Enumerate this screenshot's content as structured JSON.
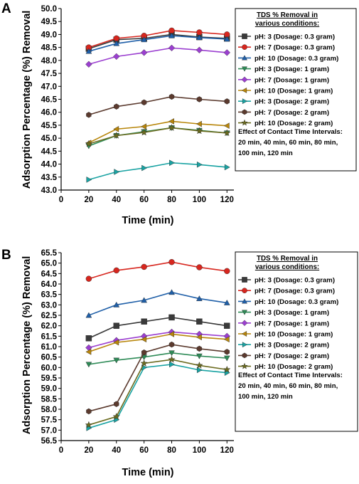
{
  "chart_data": [
    {
      "type": "line",
      "panel": "A",
      "xlabel": "Time (min)",
      "ylabel": "Adsorption Percentage (%) Removal",
      "xlim": [
        0,
        125
      ],
      "ylim": [
        43.0,
        50.0
      ],
      "xticks": [
        0,
        20,
        40,
        60,
        80,
        100,
        120
      ],
      "yticks": [
        "43.0",
        "43.5",
        "44.0",
        "44.5",
        "45.0",
        "45.5",
        "46.0",
        "46.5",
        "47.0",
        "47.5",
        "48.0",
        "48.5",
        "49.0",
        "49.5",
        "50.0"
      ],
      "x": [
        20,
        40,
        60,
        80,
        100,
        120
      ],
      "legend_title_lines": [
        "TDS % Removal in",
        "various conditions:"
      ],
      "legend_note_lines": [
        "Effect of Contact Time Intervals:",
        "20 min, 40 min, 60 min, 80 min,",
        "100 min, 120 min"
      ],
      "series": [
        {
          "name": "pH: 3 (Dosage: 0.3 gram)",
          "color": "#3a3a3a",
          "marker": "square",
          "values": [
            48.45,
            48.8,
            48.85,
            49.0,
            48.9,
            48.85
          ]
        },
        {
          "name": "pH: 7 (Dosage: 0.3 gram)",
          "color": "#d7261e",
          "marker": "circle",
          "values": [
            48.5,
            48.85,
            48.95,
            49.15,
            49.08,
            49.0
          ]
        },
        {
          "name": "pH: 10 (Dosage: 0.3 gram)",
          "color": "#1f5fa8",
          "marker": "triangle-up",
          "values": [
            48.35,
            48.65,
            48.8,
            48.95,
            48.88,
            48.82
          ]
        },
        {
          "name": "pH: 3 (Dosage: 1 gram)",
          "color": "#2e8b57",
          "marker": "triangle-down",
          "values": [
            44.7,
            45.1,
            45.25,
            45.4,
            45.3,
            45.2
          ]
        },
        {
          "name": "pH: 7 (Dosage: 1 gram)",
          "color": "#9b3fd0",
          "marker": "diamond",
          "values": [
            47.85,
            48.15,
            48.3,
            48.48,
            48.4,
            48.3
          ]
        },
        {
          "name": "pH: 10 (Dosage: 1 gram)",
          "color": "#b8860b",
          "marker": "triangle-left",
          "values": [
            44.82,
            45.35,
            45.45,
            45.65,
            45.55,
            45.48
          ]
        },
        {
          "name": "pH: 3 (Dosage: 2 gram)",
          "color": "#1aa3a3",
          "marker": "triangle-right",
          "values": [
            43.4,
            43.7,
            43.85,
            44.05,
            43.98,
            43.88
          ]
        },
        {
          "name": "pH: 7 (Dosage: 2 gram)",
          "color": "#5b3a2e",
          "marker": "hexagon",
          "values": [
            45.9,
            46.22,
            46.38,
            46.6,
            46.5,
            46.42
          ]
        },
        {
          "name": "pH: 10 (Dosage: 2 gram)",
          "color": "#6b6b1f",
          "marker": "star",
          "values": [
            44.78,
            45.1,
            45.22,
            45.4,
            45.28,
            45.2
          ]
        }
      ]
    },
    {
      "type": "line",
      "panel": "B",
      "xlabel": "Time (min)",
      "ylabel": "Adsorption Percentage (%) Removal",
      "xlim": [
        0,
        125
      ],
      "ylim": [
        56.5,
        65.5
      ],
      "xticks": [
        0,
        20,
        40,
        60,
        80,
        100,
        120
      ],
      "yticks": [
        "56.5",
        "57.0",
        "57.5",
        "58.0",
        "58.5",
        "59.0",
        "59.5",
        "60.0",
        "60.5",
        "61.0",
        "61.5",
        "62.0",
        "62.5",
        "63.0",
        "63.5",
        "64.0",
        "64.5",
        "65.0",
        "65.5"
      ],
      "x": [
        20,
        40,
        60,
        80,
        100,
        120
      ],
      "legend_title_lines": [
        "TDS % Removal in",
        "various conditions:"
      ],
      "legend_note_lines": [
        "Effect of Contact Time Intervals:",
        "20 min, 40 min, 60 min, 80 min,",
        "100 min, 120 min"
      ],
      "series": [
        {
          "name": "pH: 3 (Dosage: 0.3 gram)",
          "color": "#3a3a3a",
          "marker": "square",
          "values": [
            61.4,
            62.0,
            62.2,
            62.4,
            62.2,
            62.0
          ]
        },
        {
          "name": "pH: 7 (Dosage: 0.3 gram)",
          "color": "#d7261e",
          "marker": "circle",
          "values": [
            64.25,
            64.65,
            64.82,
            65.05,
            64.8,
            64.62
          ]
        },
        {
          "name": "pH: 10 (Dosage: 0.3 gram)",
          "color": "#1f5fa8",
          "marker": "triangle-up",
          "values": [
            62.5,
            63.0,
            63.22,
            63.6,
            63.3,
            63.1
          ]
        },
        {
          "name": "pH: 3 (Dosage: 1 gram)",
          "color": "#2e8b57",
          "marker": "triangle-down",
          "values": [
            60.15,
            60.35,
            60.5,
            60.7,
            60.55,
            60.45
          ]
        },
        {
          "name": "pH: 7 (Dosage: 1 gram)",
          "color": "#9b3fd0",
          "marker": "diamond",
          "values": [
            60.95,
            61.3,
            61.5,
            61.7,
            61.6,
            61.5
          ]
        },
        {
          "name": "pH: 10 (Dosage: 1 gram)",
          "color": "#b8860b",
          "marker": "triangle-left",
          "values": [
            60.75,
            61.2,
            61.35,
            61.6,
            61.45,
            61.35
          ]
        },
        {
          "name": "pH: 3 (Dosage: 2 gram)",
          "color": "#1aa3a3",
          "marker": "triangle-right",
          "values": [
            57.1,
            57.5,
            60.0,
            60.15,
            59.88,
            59.75
          ]
        },
        {
          "name": "pH: 7 (Dosage: 2 gram)",
          "color": "#5b3a2e",
          "marker": "hexagon",
          "values": [
            57.9,
            58.25,
            60.72,
            61.1,
            60.9,
            60.75
          ]
        },
        {
          "name": "pH: 10 (Dosage: 2 gram)",
          "color": "#6b6b1f",
          "marker": "star",
          "values": [
            57.25,
            57.65,
            60.2,
            60.38,
            60.1,
            59.9
          ]
        }
      ]
    }
  ]
}
